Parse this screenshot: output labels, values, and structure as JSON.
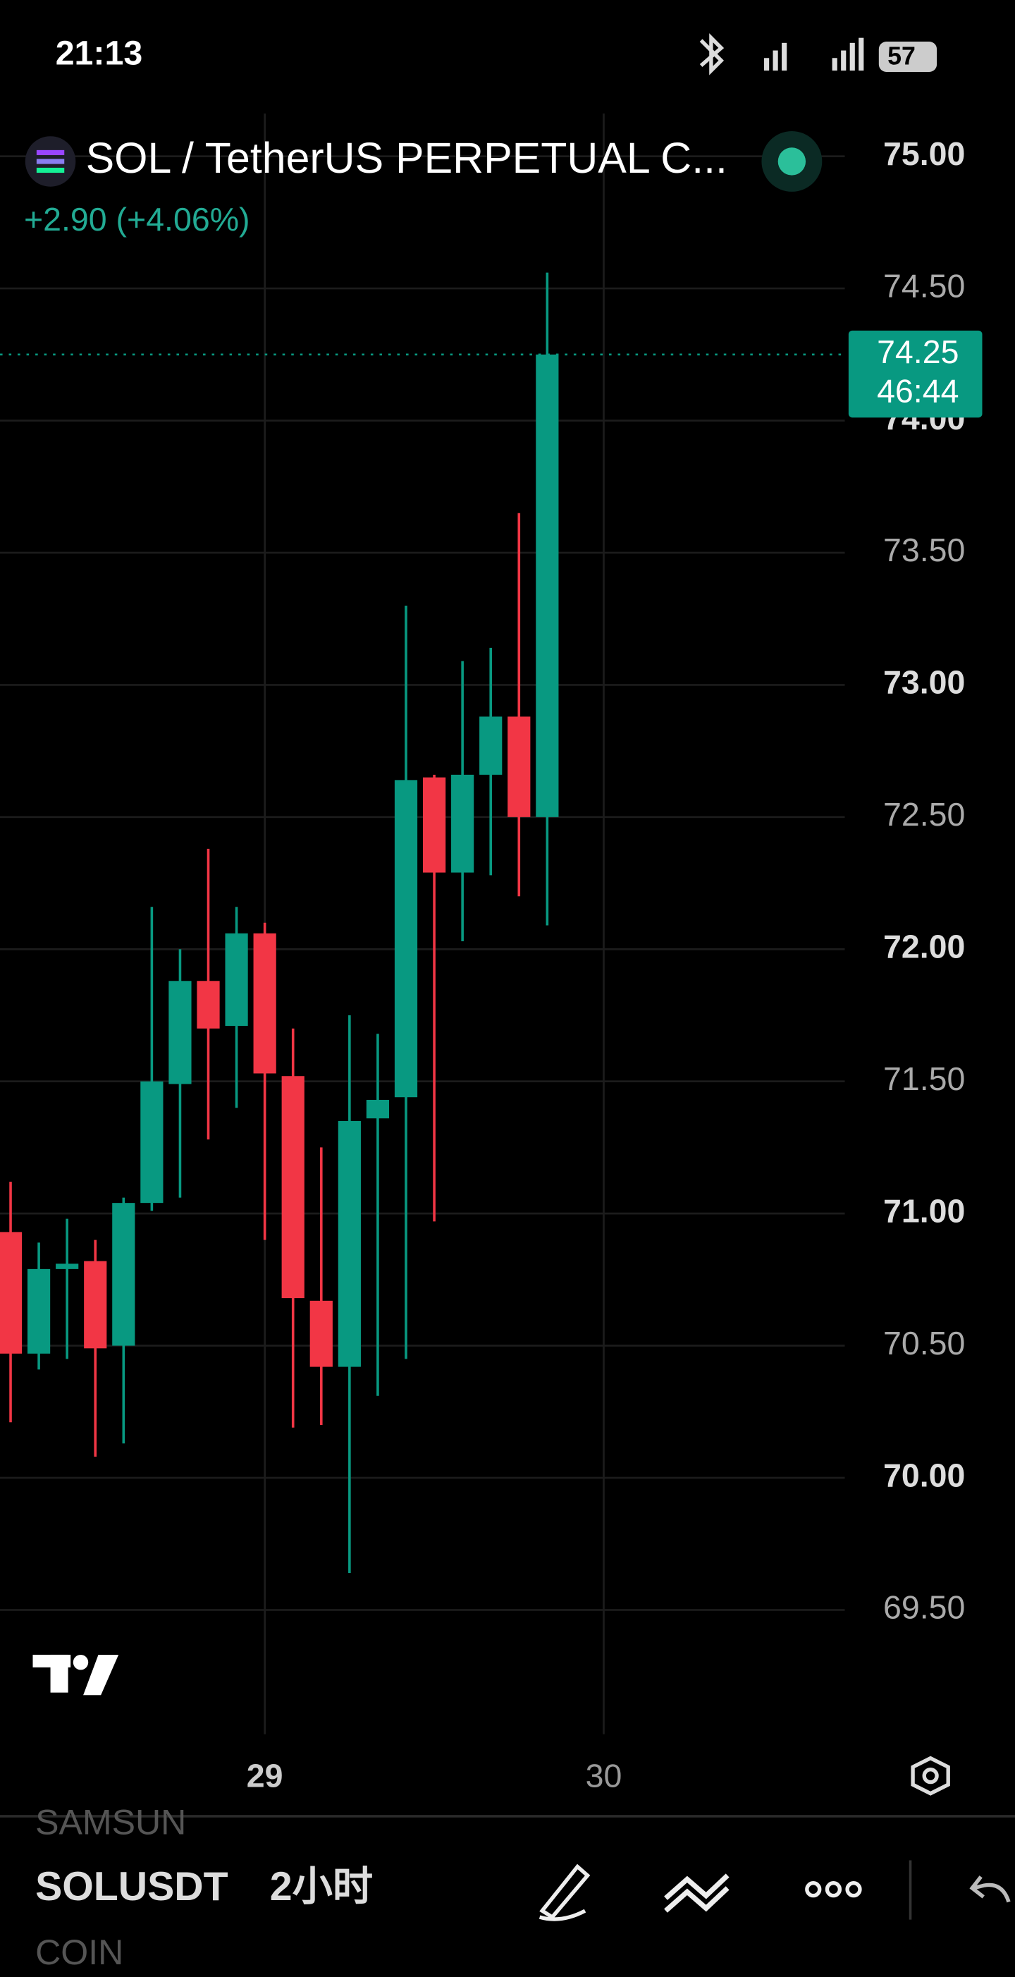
{
  "status_bar": {
    "time": "21:13",
    "battery": "57"
  },
  "chart_data": {
    "type": "candlestick",
    "title": "SOL / TetherUS PERPETUAL C...",
    "subtitle": "+2.90 (+4.06%)",
    "up_color": "#089981",
    "down_color": "#f23645",
    "open": [
      70.93,
      70.47,
      70.79,
      70.82,
      70.5,
      71.04,
      71.49,
      71.88,
      71.71,
      72.06,
      71.52,
      70.67,
      70.42,
      71.36,
      71.44,
      72.65,
      72.29,
      72.66,
      72.88,
      72.5
    ],
    "high": [
      71.12,
      70.89,
      70.98,
      70.9,
      71.06,
      72.16,
      72.0,
      72.38,
      72.16,
      72.1,
      71.7,
      71.25,
      71.75,
      71.68,
      73.3,
      72.66,
      73.09,
      73.14,
      73.65,
      74.56
    ],
    "low": [
      70.21,
      70.41,
      70.45,
      70.08,
      70.13,
      71.01,
      71.06,
      71.28,
      71.4,
      70.9,
      70.19,
      70.2,
      69.64,
      70.31,
      70.45,
      70.97,
      72.03,
      72.28,
      72.2,
      72.09
    ],
    "close": [
      70.47,
      70.79,
      70.81,
      70.49,
      71.04,
      71.5,
      71.88,
      71.7,
      72.06,
      71.53,
      70.68,
      70.42,
      71.35,
      71.43,
      72.64,
      72.29,
      72.66,
      72.88,
      72.5,
      74.25
    ],
    "date_labels": [
      "29",
      "30"
    ],
    "ylim": [
      69.03,
      75.2
    ],
    "yticks": [
      {
        "value": 75,
        "label": "75.00"
      },
      {
        "value": 74.5,
        "label": "74.50"
      },
      {
        "value": 74,
        "label": "74.00"
      },
      {
        "value": 73.5,
        "label": "73.50"
      },
      {
        "value": 73,
        "label": "73.00"
      },
      {
        "value": 72.5,
        "label": "72.50"
      },
      {
        "value": 72,
        "label": "72.00"
      },
      {
        "value": 71.5,
        "label": "71.50"
      },
      {
        "value": 71,
        "label": "71.00"
      },
      {
        "value": 70.5,
        "label": "70.50"
      },
      {
        "value": 70,
        "label": "70.00"
      },
      {
        "value": 69.5,
        "label": "69.50"
      }
    ],
    "grid": true,
    "last_price": {
      "value": 74.25,
      "label": "74.25",
      "countdown": "46:44"
    }
  },
  "toolbar": {
    "symbol": "SOLUSDT",
    "interval": "2小时",
    "above": "SAMSUN",
    "below": "COIN"
  }
}
